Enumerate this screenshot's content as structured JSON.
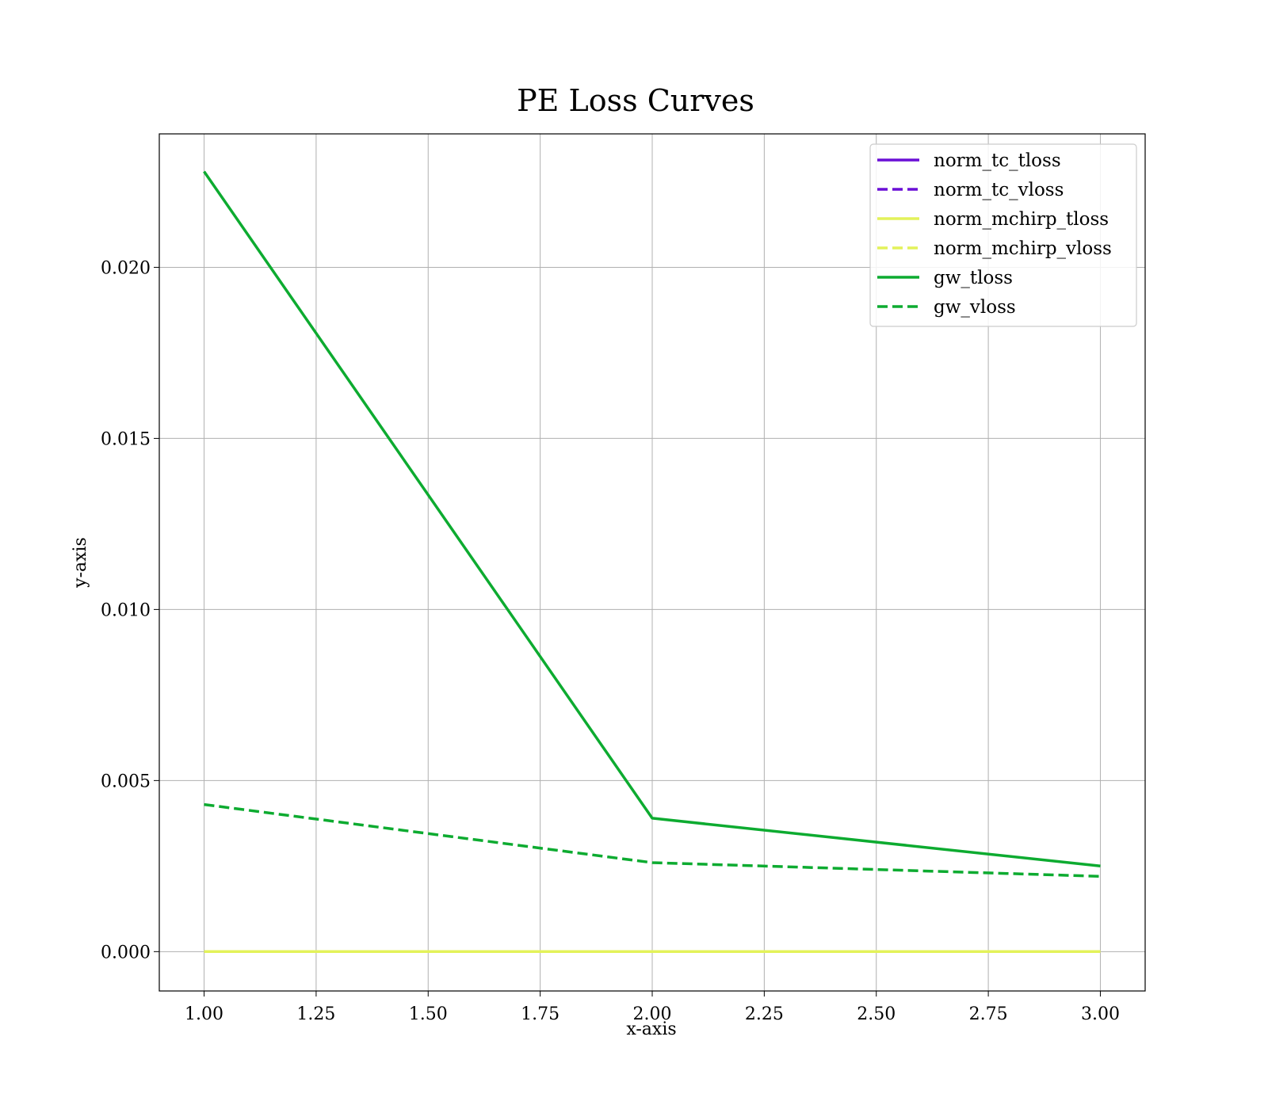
{
  "chart_data": {
    "type": "line",
    "title": "PE Loss Curves",
    "xlabel": "x-axis",
    "ylabel": "y-axis",
    "xlim": [
      0.9,
      3.1
    ],
    "ylim": [
      -0.00115,
      0.0239
    ],
    "x_ticks": [
      "1.00",
      "1.25",
      "1.50",
      "1.75",
      "2.00",
      "2.25",
      "2.50",
      "2.75",
      "3.00"
    ],
    "y_ticks": [
      "0.000",
      "0.005",
      "0.010",
      "0.015",
      "0.020"
    ],
    "grid": true,
    "legend_position": "top-right",
    "x": [
      1,
      2,
      3
    ],
    "series": [
      {
        "name": "norm_tc_tloss",
        "values": [
          0.0,
          0.0,
          0.0
        ],
        "color": "#6a0fd6",
        "style": "solid"
      },
      {
        "name": "norm_tc_vloss",
        "values": [
          0.0,
          0.0,
          0.0
        ],
        "color": "#6a0fd6",
        "style": "dashed"
      },
      {
        "name": "norm_mchirp_tloss",
        "values": [
          0.0,
          0.0,
          0.0
        ],
        "color": "#e3f25a",
        "style": "solid"
      },
      {
        "name": "norm_mchirp_vloss",
        "values": [
          0.0,
          0.0,
          0.0
        ],
        "color": "#e3f25a",
        "style": "dashed"
      },
      {
        "name": "gw_tloss",
        "values": [
          0.0228,
          0.0039,
          0.0025
        ],
        "color": "#0dab30",
        "style": "solid"
      },
      {
        "name": "gw_vloss",
        "values": [
          0.0043,
          0.0026,
          0.0022
        ],
        "color": "#0dab30",
        "style": "dashed"
      }
    ]
  }
}
